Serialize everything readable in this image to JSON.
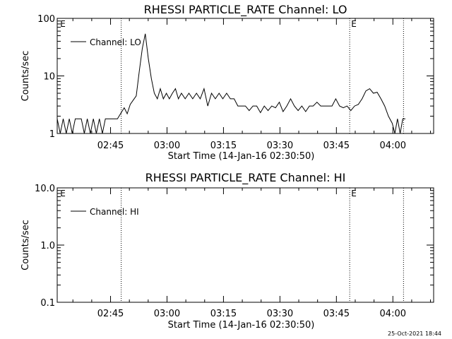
{
  "footer": {
    "timestamp": "25-Oct-2021 18:44"
  },
  "chart_data": [
    {
      "type": "line",
      "title": "RHESSI PARTICLE_RATE Channel: LO",
      "xlabel": "Start Time (14-Jan-16 02:30:50)",
      "ylabel": "Counts/sec",
      "yscale": "log",
      "ylim": [
        1,
        100
      ],
      "xlim_minutes": [
        0,
        100
      ],
      "x_tick_labels": [
        {
          "label": "02:45",
          "minutes": 14.17
        },
        {
          "label": "03:00",
          "minutes": 29.17
        },
        {
          "label": "03:15",
          "minutes": 44.17
        },
        {
          "label": "03:30",
          "minutes": 59.17
        },
        {
          "label": "03:45",
          "minutes": 74.17
        },
        {
          "label": "04:00",
          "minutes": 89.17
        }
      ],
      "y_tick_labels": [
        {
          "label": "1",
          "value": 1
        },
        {
          "label": "10",
          "value": 10
        },
        {
          "label": "100",
          "value": 100
        }
      ],
      "vlines_minutes": [
        17.0,
        77.7,
        92.0
      ],
      "markers": [
        {
          "label": "E",
          "minutes": 0.6
        },
        {
          "label": "E",
          "minutes": 77.9
        }
      ],
      "legend": {
        "label": "Channel: LO",
        "position": "top-left"
      },
      "series": [
        {
          "name": "Channel: LO",
          "x": [
            0,
            0.8,
            1.6,
            2.4,
            3.2,
            4,
            4.8,
            5.6,
            6.4,
            7.2,
            8,
            8.8,
            9.6,
            10.4,
            11.2,
            12,
            12.8,
            13.6,
            14.4,
            15.2,
            16,
            17,
            17.8,
            18.6,
            19.4,
            20.2,
            21,
            21.8,
            22.6,
            23.4,
            24.2,
            25,
            25.8,
            26.6,
            27.4,
            28.2,
            29,
            29.8,
            30.6,
            31.4,
            32.2,
            33,
            34,
            35,
            36,
            37,
            38,
            39,
            40,
            41,
            42,
            43,
            44,
            45,
            46,
            47,
            48,
            49,
            50,
            51,
            52,
            53,
            54,
            55,
            56,
            57,
            58,
            59,
            60,
            61,
            62,
            63,
            64,
            65,
            66,
            67,
            68,
            69,
            70,
            71,
            72,
            73,
            74,
            75,
            76,
            77,
            78,
            79,
            80,
            81,
            82,
            83,
            84,
            85,
            86,
            87,
            88,
            89,
            89.7,
            90.4,
            91.1,
            91.8,
            92.5
          ],
          "y": [
            1.8,
            1,
            1.8,
            1,
            1.8,
            1,
            1.8,
            1.8,
            1.8,
            1,
            1.8,
            1,
            1.8,
            1,
            1.8,
            1,
            1.8,
            1.8,
            1.8,
            1.8,
            1.8,
            2.3,
            2.8,
            2.2,
            3.2,
            3.8,
            4.5,
            12,
            30,
            54,
            20,
            9,
            5,
            4,
            6,
            4,
            5,
            4,
            5,
            6,
            4,
            5,
            4,
            5,
            4,
            5,
            4,
            6,
            3,
            5,
            4,
            5,
            4,
            5,
            4,
            4,
            3,
            3,
            3,
            2.5,
            3,
            3,
            2.3,
            3,
            2.5,
            3,
            2.8,
            3.5,
            2.4,
            3,
            4,
            3,
            2.5,
            3,
            2.4,
            3,
            3,
            3.5,
            3,
            3,
            3,
            3,
            4,
            3,
            2.8,
            3,
            2.5,
            3,
            3.2,
            4,
            5.5,
            6,
            5,
            5.2,
            4,
            3,
            2,
            1.5,
            1,
            1.8,
            1,
            1.8,
            1.8
          ]
        }
      ]
    },
    {
      "type": "line",
      "title": "RHESSI PARTICLE_RATE Channel: HI",
      "xlabel": "Start Time (14-Jan-16 02:30:50)",
      "ylabel": "Counts/sec",
      "yscale": "log",
      "ylim": [
        0.1,
        10
      ],
      "xlim_minutes": [
        0,
        100
      ],
      "x_tick_labels": [
        {
          "label": "02:45",
          "minutes": 14.17
        },
        {
          "label": "03:00",
          "minutes": 29.17
        },
        {
          "label": "03:15",
          "minutes": 44.17
        },
        {
          "label": "03:30",
          "minutes": 59.17
        },
        {
          "label": "03:45",
          "minutes": 74.17
        },
        {
          "label": "04:00",
          "minutes": 89.17
        }
      ],
      "y_tick_labels": [
        {
          "label": "0.1",
          "value": 0.1
        },
        {
          "label": "1.0",
          "value": 1
        },
        {
          "label": "10.0",
          "value": 10
        }
      ],
      "vlines_minutes": [
        17.0,
        77.7,
        92.0
      ],
      "markers": [
        {
          "label": "E",
          "minutes": 0.6
        },
        {
          "label": "E",
          "minutes": 77.9
        }
      ],
      "legend": {
        "label": "Channel: HI",
        "position": "top-left"
      },
      "series": [
        {
          "name": "Channel: HI",
          "x": [],
          "y": []
        }
      ]
    }
  ]
}
